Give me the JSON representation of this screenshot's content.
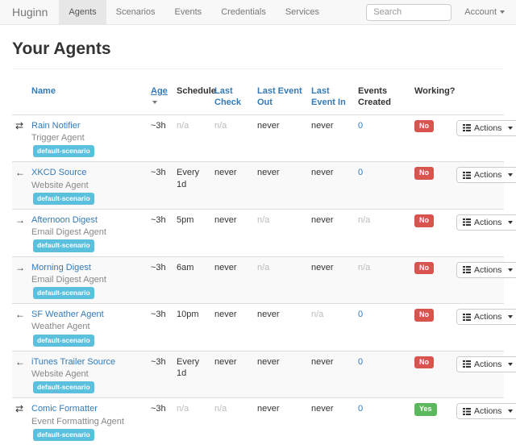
{
  "navbar": {
    "brand": "Huginn",
    "items": [
      {
        "label": "Agents",
        "active": true
      },
      {
        "label": "Scenarios",
        "active": false
      },
      {
        "label": "Events",
        "active": false
      },
      {
        "label": "Credentials",
        "active": false
      },
      {
        "label": "Services",
        "active": false
      }
    ],
    "search_placeholder": "Search",
    "account_label": "Account"
  },
  "page": {
    "title": "Your Agents"
  },
  "table": {
    "headers": [
      {
        "label": "",
        "sortable": false,
        "sorted": false
      },
      {
        "label": "Name",
        "sortable": true,
        "sorted": false
      },
      {
        "label": "Age",
        "sortable": true,
        "sorted": true
      },
      {
        "label": "Schedule",
        "sortable": false,
        "sorted": false
      },
      {
        "label": "Last Check",
        "sortable": true,
        "sorted": false
      },
      {
        "label": "Last Event Out",
        "sortable": true,
        "sorted": false
      },
      {
        "label": "Last Event In",
        "sortable": true,
        "sorted": false
      },
      {
        "label": "Events Created",
        "sortable": false,
        "sorted": false
      },
      {
        "label": "Working?",
        "sortable": false,
        "sorted": false
      }
    ],
    "actions_label": "Actions",
    "rows": [
      {
        "icon": "transfer",
        "name": "Rain Notifier",
        "type": "Trigger Agent",
        "badge": "default-scenario",
        "age": "~3h",
        "schedule": "n/a",
        "last_check": "n/a",
        "last_event_out": "never",
        "last_event_in": "never",
        "events_created": "0",
        "working": "No"
      },
      {
        "icon": "arrow-left",
        "name": "XKCD Source",
        "type": "Website Agent",
        "badge": "default-scenario",
        "age": "~3h",
        "schedule": "Every 1d",
        "last_check": "never",
        "last_event_out": "never",
        "last_event_in": "never",
        "events_created": "0",
        "working": "No"
      },
      {
        "icon": "arrow-right",
        "name": "Afternoon Digest",
        "type": "Email Digest Agent",
        "badge": "default-scenario",
        "age": "~3h",
        "schedule": "5pm",
        "last_check": "never",
        "last_event_out": "n/a",
        "last_event_in": "never",
        "events_created": "n/a",
        "working": "No"
      },
      {
        "icon": "arrow-right",
        "name": "Morning Digest",
        "type": "Email Digest Agent",
        "badge": "default-scenario",
        "age": "~3h",
        "schedule": "6am",
        "last_check": "never",
        "last_event_out": "n/a",
        "last_event_in": "never",
        "events_created": "n/a",
        "working": "No"
      },
      {
        "icon": "arrow-left",
        "name": "SF Weather Agent",
        "type": "Weather Agent",
        "badge": "default-scenario",
        "age": "~3h",
        "schedule": "10pm",
        "last_check": "never",
        "last_event_out": "never",
        "last_event_in": "n/a",
        "events_created": "0",
        "working": "No"
      },
      {
        "icon": "arrow-left",
        "name": "iTunes Trailer Source",
        "type": "Website Agent",
        "badge": "default-scenario",
        "age": "~3h",
        "schedule": "Every 1d",
        "last_check": "never",
        "last_event_out": "never",
        "last_event_in": "never",
        "events_created": "0",
        "working": "No"
      },
      {
        "icon": "transfer",
        "name": "Comic Formatter",
        "type": "Event Formatting Agent",
        "badge": "default-scenario",
        "age": "~3h",
        "schedule": "n/a",
        "last_check": "n/a",
        "last_event_out": "never",
        "last_event_in": "never",
        "events_created": "0",
        "working": "Yes"
      }
    ]
  }
}
